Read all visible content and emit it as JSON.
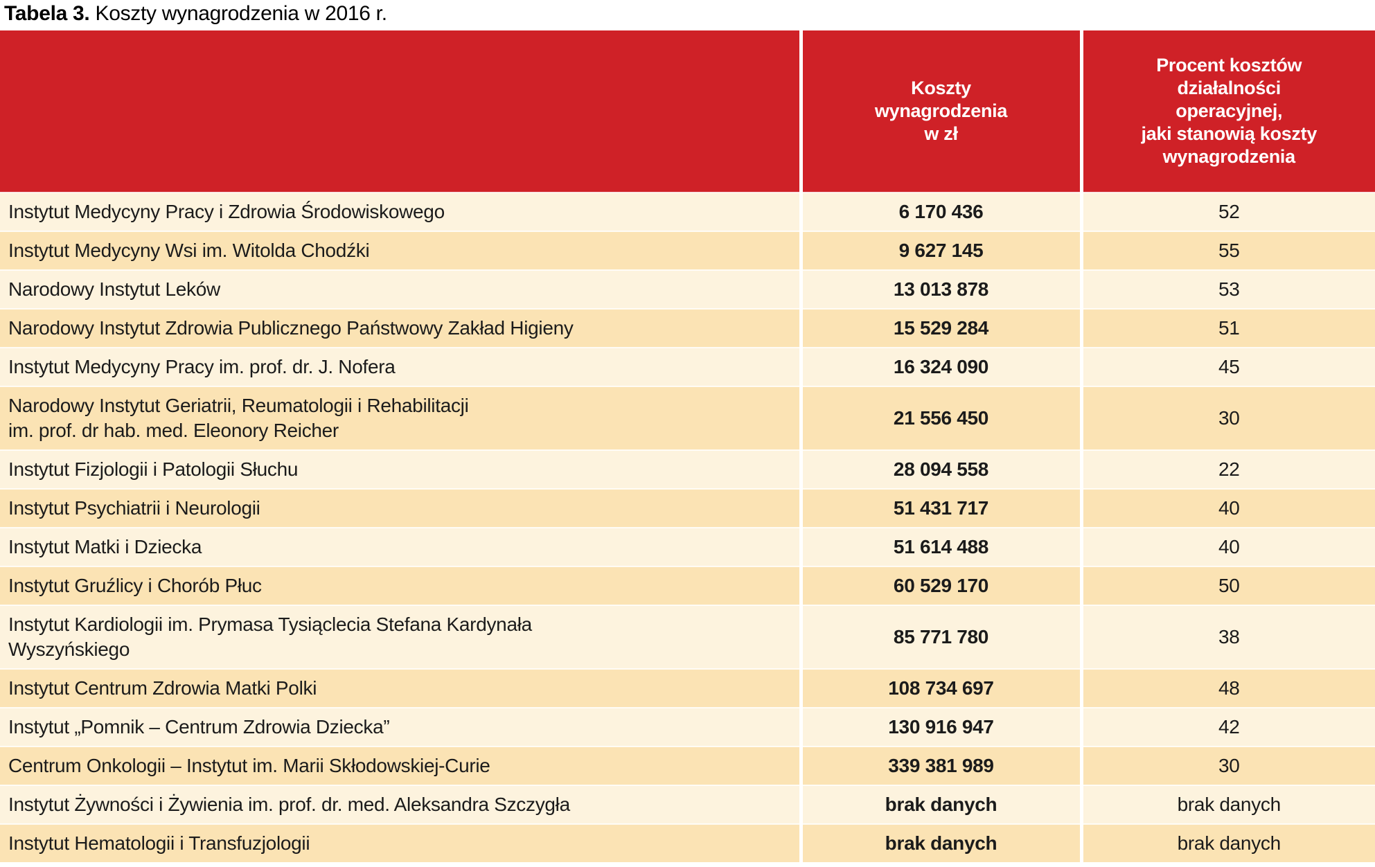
{
  "title": {
    "prefix": "Tabela 3.",
    "rest": " Koszty wynagrodzenia w 2016 r."
  },
  "table": {
    "columns": [
      {
        "header": ""
      },
      {
        "header": "Koszty\nwynagrodzenia\nw zł"
      },
      {
        "header": "Procent kosztów\ndziałalności\noperacyjnej,\njaki stanowią koszty\nwynagrodzenia"
      }
    ],
    "rows": [
      {
        "name": "Instytut Medycyny Pracy i Zdrowia Środowiskowego",
        "cost": "6 170 436",
        "percent": "52"
      },
      {
        "name": "Instytut Medycyny Wsi im. Witolda Chodźki",
        "cost": "9 627 145",
        "percent": "55"
      },
      {
        "name": "Narodowy Instytut Leków",
        "cost": "13 013 878",
        "percent": "53"
      },
      {
        "name": "Narodowy Instytut Zdrowia Publicznego Państwowy Zakład Higieny",
        "cost": "15 529 284",
        "percent": "51"
      },
      {
        "name": "Instytut Medycyny Pracy im. prof. dr. J. Nofera",
        "cost": "16 324 090",
        "percent": "45"
      },
      {
        "name": "Narodowy Instytut Geriatrii, Reumatologii i Rehabilitacji\nim. prof. dr hab. med. Eleonory Reicher",
        "cost": "21 556 450",
        "percent": "30"
      },
      {
        "name": "Instytut Fizjologii i Patologii Słuchu",
        "cost": "28 094 558",
        "percent": "22"
      },
      {
        "name": "Instytut Psychiatrii i Neurologii",
        "cost": "51 431 717",
        "percent": "40"
      },
      {
        "name": "Instytut Matki i Dziecka",
        "cost": "51 614 488",
        "percent": "40"
      },
      {
        "name": "Instytut Gruźlicy i Chorób Płuc",
        "cost": "60 529 170",
        "percent": "50"
      },
      {
        "name": "Instytut Kardiologii im. Prymasa Tysiąclecia Stefana Kardynała\nWyszyńskiego",
        "cost": "85 771 780",
        "percent": "38"
      },
      {
        "name": "Instytut Centrum Zdrowia Matki Polki",
        "cost": "108 734 697",
        "percent": "48"
      },
      {
        "name": "Instytut „Pomnik – Centrum Zdrowia Dziecka”",
        "cost": "130 916 947",
        "percent": "42"
      },
      {
        "name": "Centrum Onkologii – Instytut im. Marii Skłodowskiej-Curie",
        "cost": "339 381 989",
        "percent": "30"
      },
      {
        "name": "Instytut Żywności i Żywienia im. prof. dr. med. Aleksandra Szczygła",
        "cost": "brak danych",
        "percent": "brak danych"
      },
      {
        "name": "Instytut Hematologii i Transfuzjologii",
        "cost": "brak danych",
        "percent": "brak danych"
      }
    ]
  },
  "colors": {
    "header_bg": "#cf2127",
    "row_light": "#fdf3de",
    "row_dark": "#fbe3b4",
    "header_text": "#ffffff",
    "body_text": "#1b1b1b",
    "separator": "#ffffff"
  }
}
